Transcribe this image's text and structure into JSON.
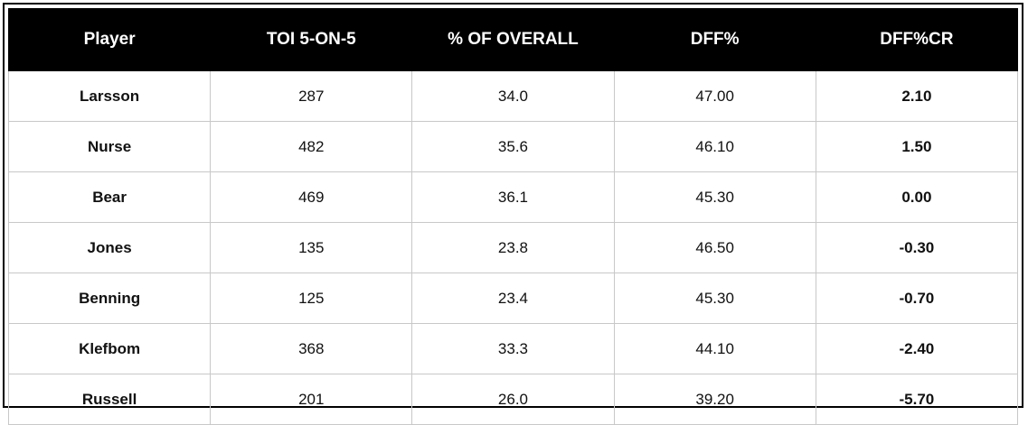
{
  "table": {
    "header": [
      "Player",
      "TOI 5-ON-5",
      "% OF OVERALL",
      "DFF%",
      "DFF%CR"
    ],
    "rows": [
      [
        "Larsson",
        "287",
        "34.0",
        "47.00",
        "2.10"
      ],
      [
        "Nurse",
        "482",
        "35.6",
        "46.10",
        "1.50"
      ],
      [
        "Bear",
        "469",
        "36.1",
        "45.30",
        "0.00"
      ],
      [
        "Jones",
        "135",
        "23.8",
        "46.50",
        "-0.30"
      ],
      [
        "Benning",
        "125",
        "23.4",
        "45.30",
        "-0.70"
      ],
      [
        "Klefbom",
        "368",
        "33.3",
        "44.10",
        "-2.40"
      ],
      [
        "Russell",
        "201",
        "26.0",
        "39.20",
        "-5.70"
      ]
    ]
  }
}
